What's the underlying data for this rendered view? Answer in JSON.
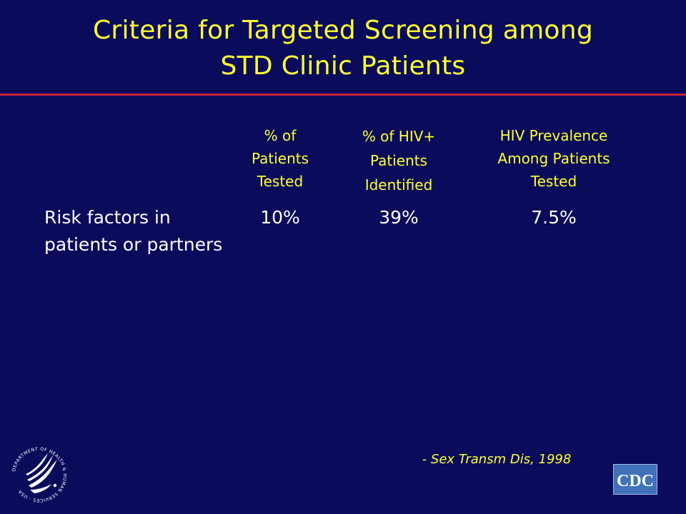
{
  "slide": {
    "title_line1": "Criteria for Targeted Screening among",
    "title_line2": "STD Clinic Patients"
  },
  "table": {
    "headers": [
      {
        "line1": "% of",
        "line2": "Patients",
        "line3": "Tested"
      },
      {
        "line1": "% of HIV+",
        "line2": "Patients",
        "line3": "Identified"
      },
      {
        "line1": "HIV Prevalence",
        "line2": "Among Patients",
        "line3": "Tested"
      }
    ],
    "rows": [
      {
        "label_line1": "Risk factors in",
        "label_line2": "patients or partners",
        "values": [
          "10%",
          "39%",
          "7.5%"
        ]
      }
    ]
  },
  "citation": "- Sex Transm Dis, 1998",
  "logos": {
    "hhs_seal_text": "DEPARTMENT OF HEALTH & HUMAN SERVICES · USA",
    "cdc_text": "CDC"
  },
  "colors": {
    "background": "#0b0b5c",
    "title": "#ffff33",
    "rule": "#c8203a",
    "body_text": "#ffffff",
    "cdc_logo": "#3f72b8"
  }
}
